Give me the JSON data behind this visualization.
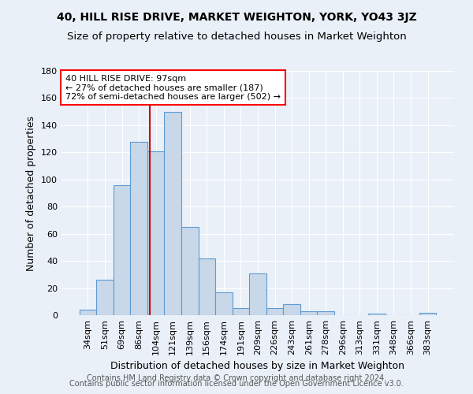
{
  "title": "40, HILL RISE DRIVE, MARKET WEIGHTON, YORK, YO43 3JZ",
  "subtitle": "Size of property relative to detached houses in Market Weighton",
  "xlabel": "Distribution of detached houses by size in Market Weighton",
  "ylabel": "Number of detached properties",
  "categories": [
    "34sqm",
    "51sqm",
    "69sqm",
    "86sqm",
    "104sqm",
    "121sqm",
    "139sqm",
    "156sqm",
    "174sqm",
    "191sqm",
    "209sqm",
    "226sqm",
    "243sqm",
    "261sqm",
    "278sqm",
    "296sqm",
    "313sqm",
    "331sqm",
    "348sqm",
    "366sqm",
    "383sqm"
  ],
  "values": [
    4,
    26,
    96,
    128,
    121,
    150,
    65,
    42,
    17,
    5,
    31,
    5,
    8,
    3,
    3,
    0,
    0,
    1,
    0,
    0,
    2
  ],
  "bar_color": "#c8d8e8",
  "bar_edge_color": "#5b9bd5",
  "annotation_line1": "40 HILL RISE DRIVE: 97sqm",
  "annotation_line2": "← 27% of detached houses are smaller (187)",
  "annotation_line3": "72% of semi-detached houses are larger (502) →",
  "annotation_box_color": "white",
  "annotation_box_edge_color": "red",
  "red_line_color": "#cc0000",
  "red_line_x": 3.65,
  "ylim": [
    0,
    180
  ],
  "yticks": [
    0,
    20,
    40,
    60,
    80,
    100,
    120,
    140,
    160,
    180
  ],
  "footer1": "Contains HM Land Registry data © Crown copyright and database right 2024.",
  "footer2": "Contains public sector information licensed under the Open Government Licence v3.0.",
  "background_color": "#eaf0f8",
  "grid_color": "white",
  "title_fontsize": 10,
  "subtitle_fontsize": 9.5,
  "label_fontsize": 9,
  "tick_fontsize": 8,
  "annotation_fontsize": 8,
  "footer_fontsize": 7
}
